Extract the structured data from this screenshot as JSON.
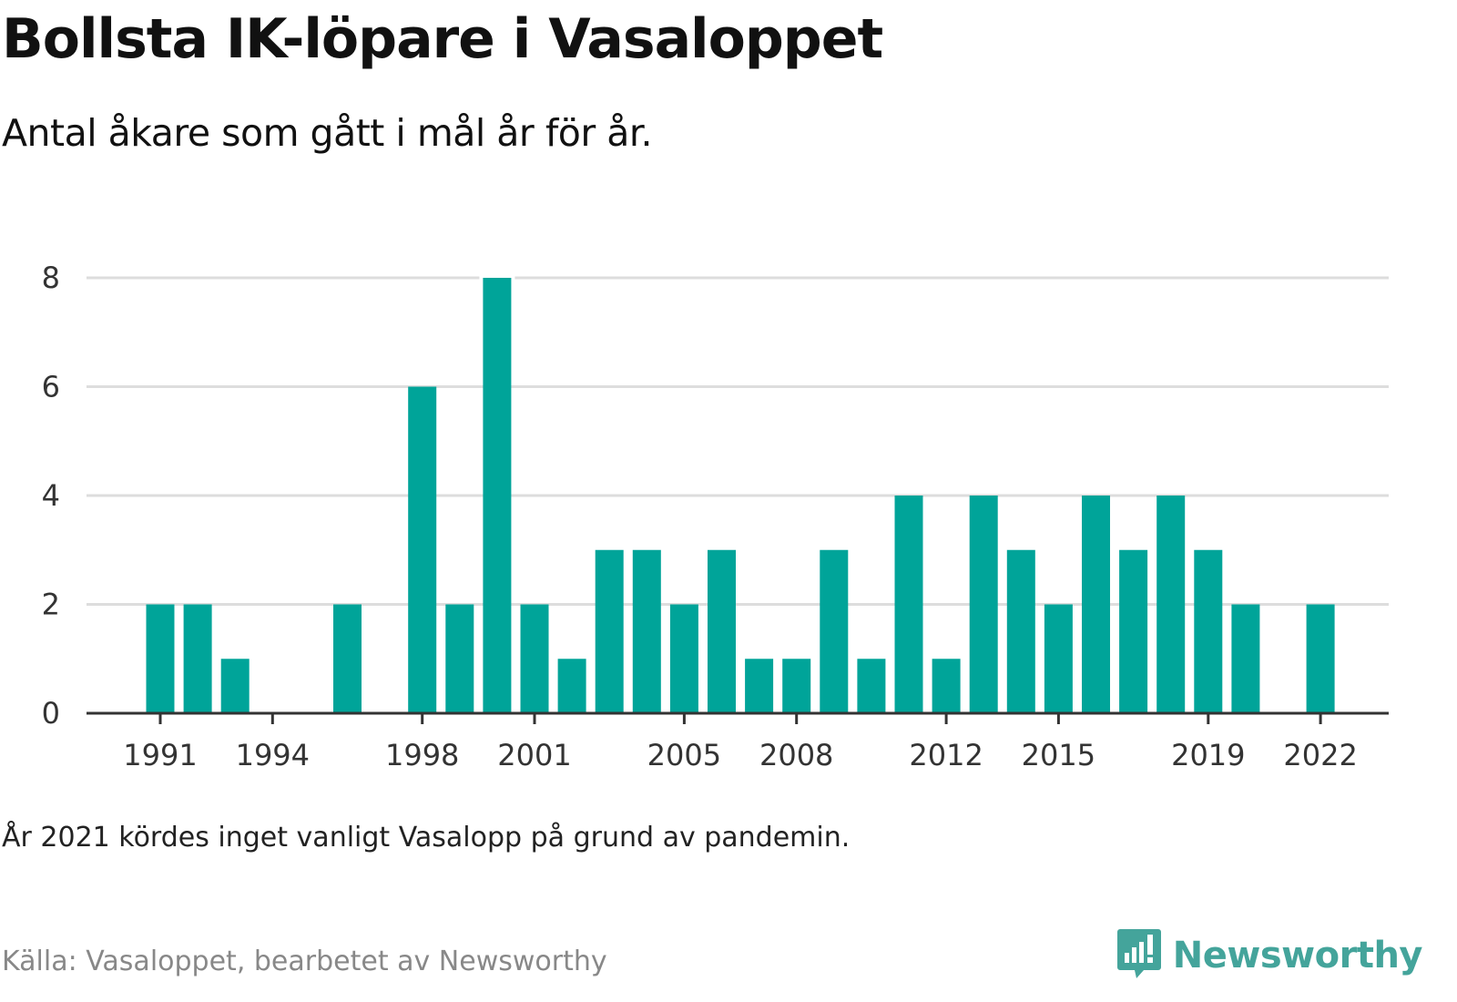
{
  "header": {
    "title": "Bollsta IK-löpare i Vasaloppet",
    "subtitle": "Antal åkare som gått i mål år för år."
  },
  "footer": {
    "note": "År 2021 kördes inget vanligt Vasalopp på grund av pandemin.",
    "source": "Källa: Vasaloppet, bearbetet av Newsworthy",
    "brand": "Newsworthy"
  },
  "colors": {
    "bar": "#00a499",
    "grid": "#dddddd",
    "axis": "#333333",
    "brand": "#44a49b"
  },
  "icons": {
    "brand_logo": "newsworthy-logo-icon"
  },
  "chart_data": {
    "type": "bar",
    "categories": [
      "1991",
      "1992",
      "1993",
      "1994",
      "1995",
      "1996",
      "1997",
      "1998",
      "1999",
      "2000",
      "2001",
      "2002",
      "2003",
      "2004",
      "2005",
      "2006",
      "2007",
      "2008",
      "2009",
      "2010",
      "2011",
      "2012",
      "2013",
      "2014",
      "2015",
      "2016",
      "2017",
      "2018",
      "2019",
      "2020",
      "2021",
      "2022"
    ],
    "values": [
      2,
      2,
      1,
      0,
      0,
      2,
      0,
      6,
      2,
      8,
      2,
      1,
      3,
      3,
      2,
      3,
      1,
      1,
      3,
      1,
      4,
      1,
      4,
      3,
      2,
      4,
      3,
      4,
      3,
      2,
      0,
      2
    ],
    "x_tick_labels": [
      "1991",
      "1994",
      "1998",
      "2001",
      "2005",
      "2008",
      "2012",
      "2015",
      "2019",
      "2022"
    ],
    "y_ticks": [
      0,
      2,
      4,
      6,
      8
    ],
    "ylim": [
      0,
      8
    ],
    "grid": true,
    "legend": "none"
  }
}
